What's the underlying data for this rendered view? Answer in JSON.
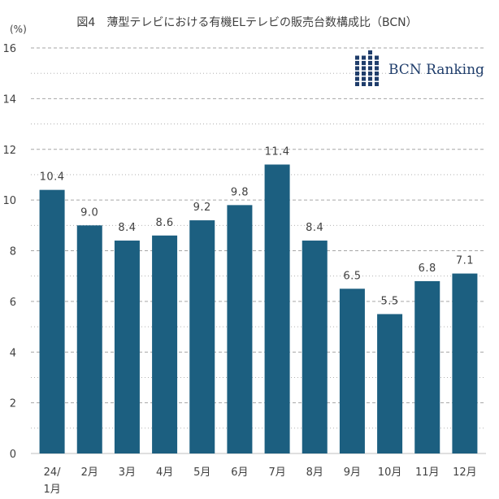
{
  "chart_data": {
    "type": "bar",
    "title": "図4　薄型テレビにおける有機ELテレビの販売台数構成比（BCN）",
    "ylabel": "(%)",
    "xlabel": "",
    "ylim": [
      0,
      16
    ],
    "yticks": [
      0,
      2,
      4,
      6,
      8,
      10,
      12,
      14,
      16
    ],
    "grid": true,
    "categories": [
      "24/1月",
      "2月",
      "3月",
      "4月",
      "5月",
      "6月",
      "7月",
      "8月",
      "9月",
      "10月",
      "11月",
      "12月"
    ],
    "values": [
      10.4,
      9.0,
      8.4,
      8.6,
      9.2,
      9.8,
      11.4,
      8.4,
      6.5,
      5.5,
      6.8,
      7.1
    ],
    "value_labels": [
      "10.4",
      "9.0",
      "8.4",
      "8.6",
      "9.2",
      "9.8",
      "11.4",
      "8.4",
      "6.5",
      "5.5",
      "6.8",
      "7.1"
    ],
    "bar_color": "#1c5f80",
    "grid_color": "#a6a6a6"
  },
  "logo": {
    "text": "BCN Ranking",
    "color": "#1f3d6b"
  }
}
